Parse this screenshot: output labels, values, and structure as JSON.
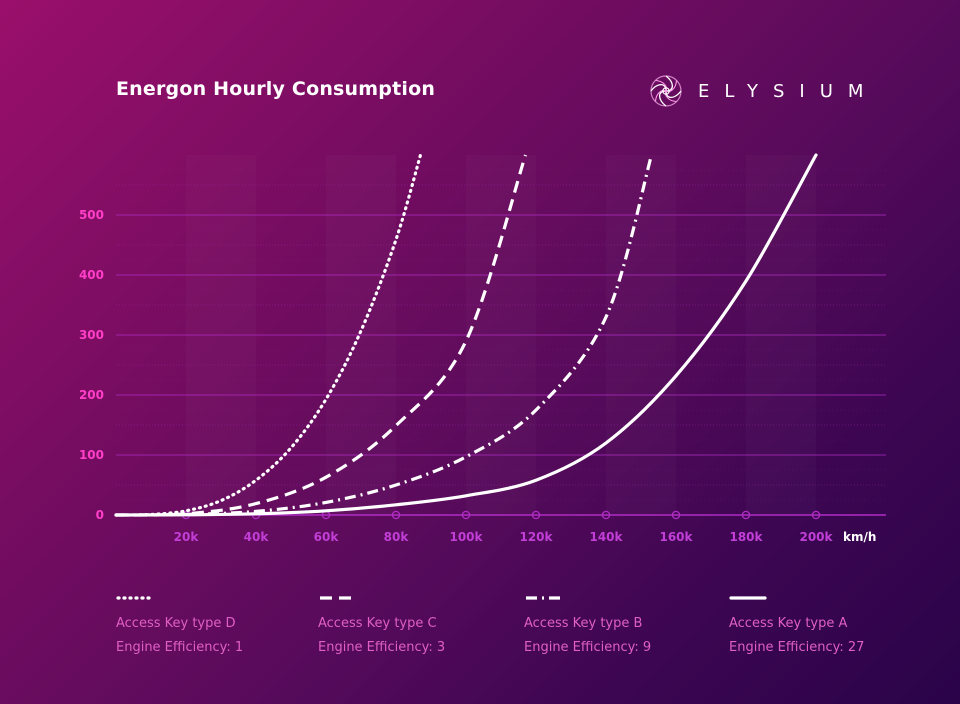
{
  "header": {
    "title": "Energon Hourly Consumption",
    "brand_name": "ELYSIUM"
  },
  "chart_data": {
    "type": "line",
    "title": "Energon Hourly Consumption",
    "xlabel": "km/h",
    "ylabel": "",
    "xlim": [
      0,
      220000
    ],
    "ylim": [
      0,
      600
    ],
    "x_ticks": [
      20000,
      40000,
      60000,
      80000,
      100000,
      120000,
      140000,
      160000,
      180000,
      200000
    ],
    "x_tick_labels": [
      "20k",
      "40k",
      "60k",
      "80k",
      "100k",
      "120k",
      "140k",
      "160k",
      "180k",
      "200k"
    ],
    "y_ticks": [
      0,
      100,
      200,
      300,
      400,
      500
    ],
    "y_tick_labels": [
      "0",
      "100",
      "200",
      "300",
      "400",
      "500"
    ],
    "grid": true,
    "legend_position": "bottom",
    "series": [
      {
        "name": "Access Key type D",
        "efficiency": "Engine Efficiency: 1",
        "style": "dotted",
        "x": [
          0,
          10000,
          20000,
          30000,
          40000,
          50000,
          60000,
          70000,
          80000,
          87000
        ],
        "y": [
          0,
          0.8,
          7,
          24,
          58,
          112,
          193,
          307,
          459,
          600
        ]
      },
      {
        "name": "Access Key type C",
        "efficiency": "Engine Efficiency: 3",
        "style": "dashed",
        "x": [
          0,
          20000,
          40000,
          60000,
          80000,
          100000,
          117000
        ],
        "y": [
          0,
          2,
          19,
          63,
          149,
          290,
          600
        ]
      },
      {
        "name": "Access Key type B",
        "efficiency": "Engine Efficiency: 9",
        "style": "dashdot",
        "x": [
          0,
          20000,
          40000,
          60000,
          80000,
          100000,
          120000,
          140000,
          153000
        ],
        "y": [
          0,
          1,
          6,
          21,
          50,
          97,
          175,
          330,
          600
        ]
      },
      {
        "name": "Access Key type A",
        "efficiency": "Engine Efficiency: 27",
        "style": "solid",
        "x": [
          0,
          20000,
          40000,
          60000,
          80000,
          100000,
          120000,
          140000,
          160000,
          180000,
          200000
        ],
        "y": [
          0,
          0.3,
          2,
          7,
          17,
          32,
          58,
          120,
          232,
          390,
          600
        ]
      }
    ]
  },
  "colors": {
    "line": "#ffffff",
    "tick_y": "#ff3fc8",
    "tick_x": "#c13fd6",
    "grid": "#b02cc4",
    "legend_text": "#e05fc4"
  }
}
